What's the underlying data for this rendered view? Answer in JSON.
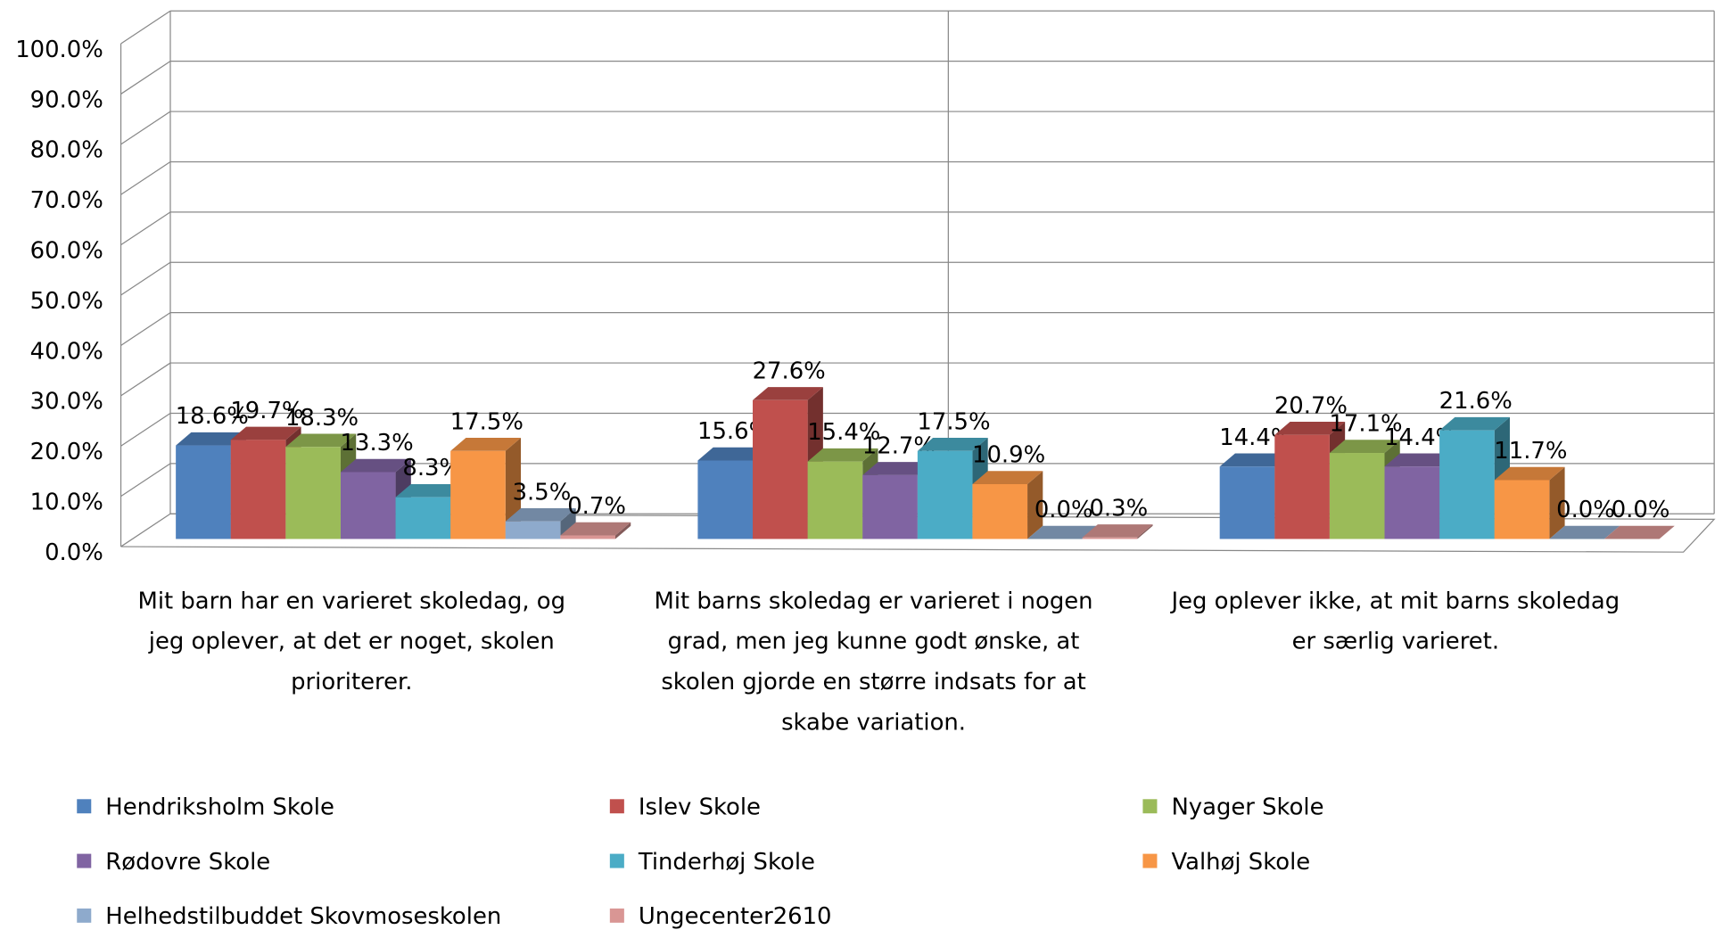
{
  "chart_data": {
    "type": "bar3d",
    "categories": [
      "Mit barn har en varieret skoledag, og jeg oplever, at det er noget, skolen prioriterer.",
      "Mit barns skoledag er varieret i nogen grad, men jeg kunne godt ønske, at skolen gjorde en større indsats for at skabe variation.",
      "Jeg oplever ikke, at mit barns skoledag er særlig varieret."
    ],
    "series": [
      {
        "name": "Hendriksholm Skole",
        "color": "#4f81bd",
        "values": [
          18.6,
          15.6,
          14.4
        ],
        "value_labels": [
          "18.6%",
          "15.6%",
          "14.4%"
        ]
      },
      {
        "name": "Islev Skole",
        "color": "#c0504d",
        "values": [
          19.7,
          27.6,
          20.7
        ],
        "value_labels": [
          "19.7%",
          "27.6%",
          "20.7%"
        ]
      },
      {
        "name": "Nyager Skole",
        "color": "#9bbb59",
        "values": [
          18.3,
          15.4,
          17.1
        ],
        "value_labels": [
          "18.3%",
          "15.4%",
          "17.1%"
        ]
      },
      {
        "name": "Rødovre Skole",
        "color": "#8064a2",
        "values": [
          13.3,
          12.7,
          14.4
        ],
        "value_labels": [
          "13.3%",
          "12.7%",
          "14.4%"
        ]
      },
      {
        "name": "Tinderhøj Skole",
        "color": "#4bacc6",
        "values": [
          8.3,
          17.5,
          21.6
        ],
        "value_labels": [
          "8.3%",
          "17.5%",
          "21.6%"
        ]
      },
      {
        "name": "Valhøj Skole",
        "color": "#f79646",
        "values": [
          17.5,
          10.9,
          11.7
        ],
        "value_labels": [
          "17.5%",
          "10.9%",
          "11.7%"
        ]
      },
      {
        "name": "Helhedstilbuddet Skovmoseskolen",
        "color": "#8eaacc",
        "values": [
          3.5,
          0.0,
          0.0
        ],
        "value_labels": [
          "3.5%",
          "0.0%",
          "0.0%"
        ]
      },
      {
        "name": "Ungecenter2610",
        "color": "#d99694",
        "values": [
          0.7,
          0.3,
          0.0
        ],
        "value_labels": [
          "0.7%",
          "0.3%",
          "0.0%"
        ]
      }
    ],
    "ylim": [
      0,
      100
    ],
    "yticks": [
      {
        "value": 0,
        "label": "0.0%"
      },
      {
        "value": 10,
        "label": "10.0%"
      },
      {
        "value": 20,
        "label": "20.0%"
      },
      {
        "value": 30,
        "label": "30.0%"
      },
      {
        "value": 40,
        "label": "40.0%"
      },
      {
        "value": 50,
        "label": "50.0%"
      },
      {
        "value": 60,
        "label": "60.0%"
      },
      {
        "value": 70,
        "label": "70.0%"
      },
      {
        "value": 80,
        "label": "80.0%"
      },
      {
        "value": 90,
        "label": "90.0%"
      },
      {
        "value": 100,
        "label": "100.0%"
      }
    ],
    "grid": true,
    "legend": "bottom"
  }
}
